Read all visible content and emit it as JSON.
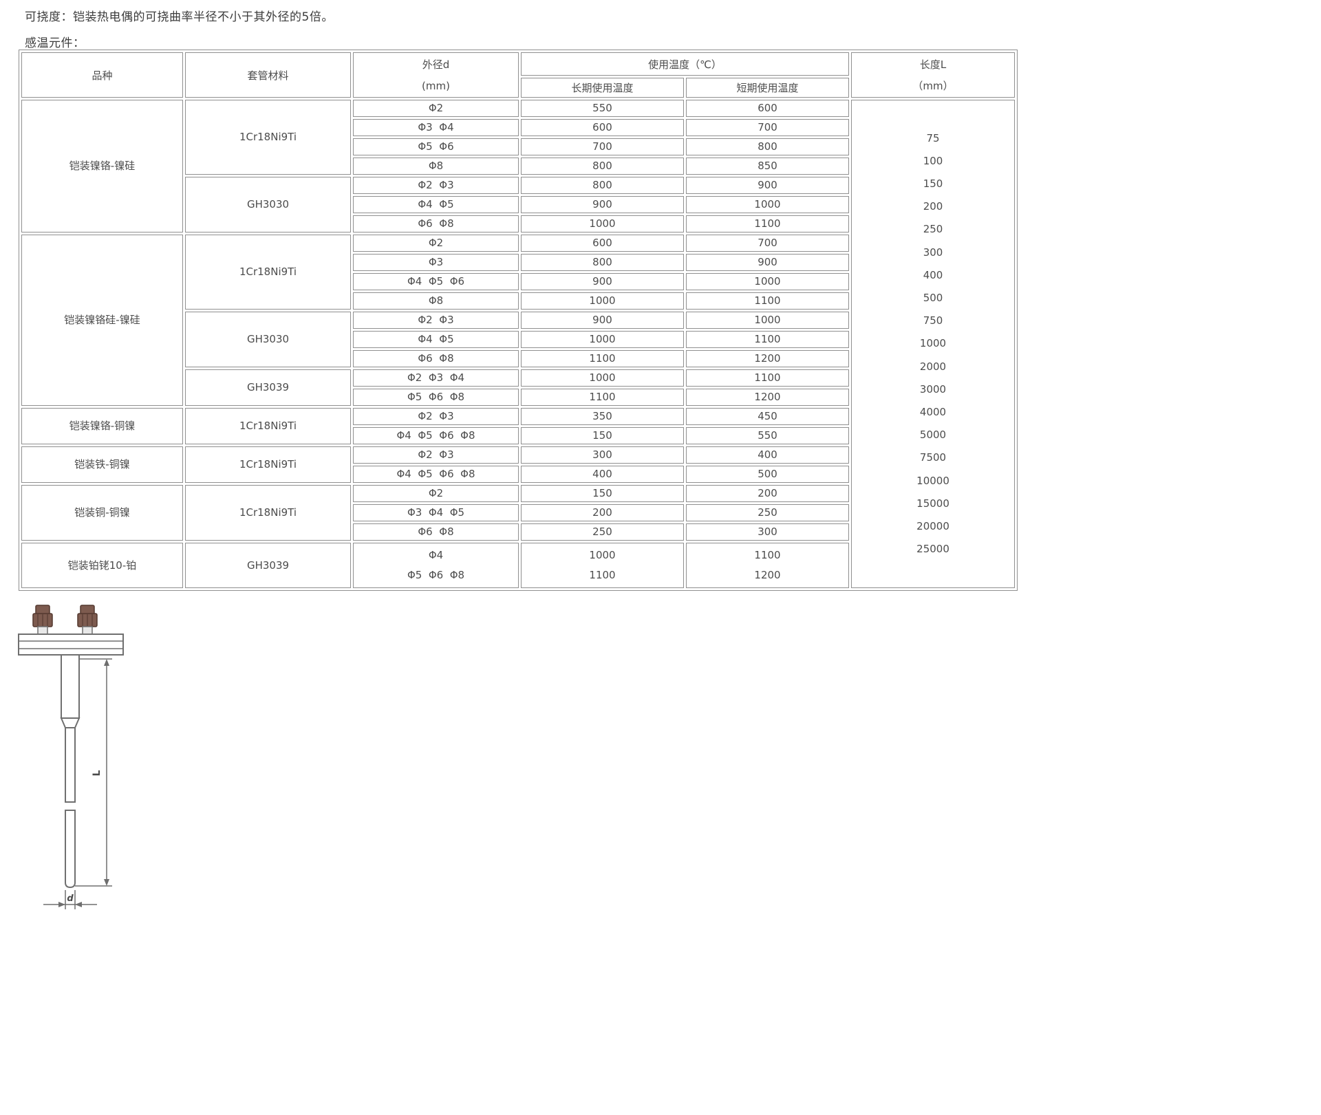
{
  "page": {
    "note_flexibility": "可挠度：铠装热电偶的可挠曲率半径不小于其外径的5倍。",
    "section_label": "感温元件："
  },
  "table": {
    "headers": {
      "variety": "品种",
      "sheath_material": "套管材料",
      "outer_diameter_line1": "外径d",
      "outer_diameter_line2": "(mm)",
      "usage_temp": "使用温度（℃）",
      "long_term": "长期使用温度",
      "short_term": "短期使用温度",
      "length_line1": "长度L",
      "length_line2": "（mm）"
    },
    "groups": [
      {
        "variety": "铠装镍铬-镍硅",
        "materials": [
          {
            "name": "1Cr18Ni9Ti",
            "rows": [
              {
                "d": "Φ2",
                "long": "550",
                "short": "600"
              },
              {
                "d": "Φ3  Φ4",
                "long": "600",
                "short": "700"
              },
              {
                "d": "Φ5  Φ6",
                "long": "700",
                "short": "800"
              },
              {
                "d": "Φ8",
                "long": "800",
                "short": "850"
              }
            ]
          },
          {
            "name": "GH3030",
            "rows": [
              {
                "d": "Φ2  Φ3",
                "long": "800",
                "short": "900"
              },
              {
                "d": "Φ4  Φ5",
                "long": "900",
                "short": "1000"
              },
              {
                "d": "Φ6  Φ8",
                "long": "1000",
                "short": "1100"
              }
            ]
          }
        ]
      },
      {
        "variety": "铠装镍铬硅-镍硅",
        "materials": [
          {
            "name": "1Cr18Ni9Ti",
            "rows": [
              {
                "d": "Φ2",
                "long": "600",
                "short": "700"
              },
              {
                "d": "Φ3",
                "long": "800",
                "short": "900"
              },
              {
                "d": "Φ4  Φ5  Φ6",
                "long": "900",
                "short": "1000"
              },
              {
                "d": "Φ8",
                "long": "1000",
                "short": "1100"
              }
            ]
          },
          {
            "name": "GH3030",
            "rows": [
              {
                "d": "Φ2  Φ3",
                "long": "900",
                "short": "1000"
              },
              {
                "d": "Φ4  Φ5",
                "long": "1000",
                "short": "1100"
              },
              {
                "d": "Φ6  Φ8",
                "long": "1100",
                "short": "1200"
              }
            ]
          },
          {
            "name": "GH3039",
            "rows": [
              {
                "d": "Φ2  Φ3  Φ4",
                "long": "1000",
                "short": "1100"
              },
              {
                "d": "Φ5  Φ6  Φ8",
                "long": "1100",
                "short": "1200"
              }
            ]
          }
        ]
      },
      {
        "variety": "铠装镍铬-铜镍",
        "materials": [
          {
            "name": "1Cr18Ni9Ti",
            "rows": [
              {
                "d": "Φ2  Φ3",
                "long": "350",
                "short": "450"
              },
              {
                "d": "Φ4  Φ5  Φ6  Φ8",
                "long": "150",
                "short": "550"
              }
            ]
          }
        ]
      },
      {
        "variety": "铠装铁-铜镍",
        "materials": [
          {
            "name": "1Cr18Ni9Ti",
            "rows": [
              {
                "d": "Φ2  Φ3",
                "long": "300",
                "short": "400"
              },
              {
                "d": "Φ4  Φ5  Φ6  Φ8",
                "long": "400",
                "short": "500"
              }
            ]
          }
        ]
      },
      {
        "variety": "铠装铜-铜镍",
        "materials": [
          {
            "name": "1Cr18Ni9Ti",
            "rows": [
              {
                "d": "Φ2",
                "long": "150",
                "short": "200"
              },
              {
                "d": "Φ3  Φ4  Φ5",
                "long": "200",
                "short": "250"
              },
              {
                "d": "Φ6  Φ8",
                "long": "250",
                "short": "300"
              }
            ]
          }
        ]
      },
      {
        "variety": "铠装铂铑10-铂",
        "materials": [
          {
            "name": "GH3039",
            "rows": [
              {
                "tall": true,
                "d": [
                  "Φ4",
                  "Φ5  Φ6  Φ8"
                ],
                "long": [
                  "1000",
                  "1100"
                ],
                "short": [
                  "1100",
                  "1200"
                ]
              }
            ]
          }
        ]
      }
    ],
    "lengths": [
      "75",
      "100",
      "150",
      "200",
      "250",
      "300",
      "400",
      "500",
      "750",
      "1000",
      "2000",
      "3000",
      "4000",
      "5000",
      "7500",
      "10000",
      "15000",
      "20000",
      "25000"
    ]
  },
  "diagram": {
    "label_length": "L",
    "label_diameter": "d"
  }
}
